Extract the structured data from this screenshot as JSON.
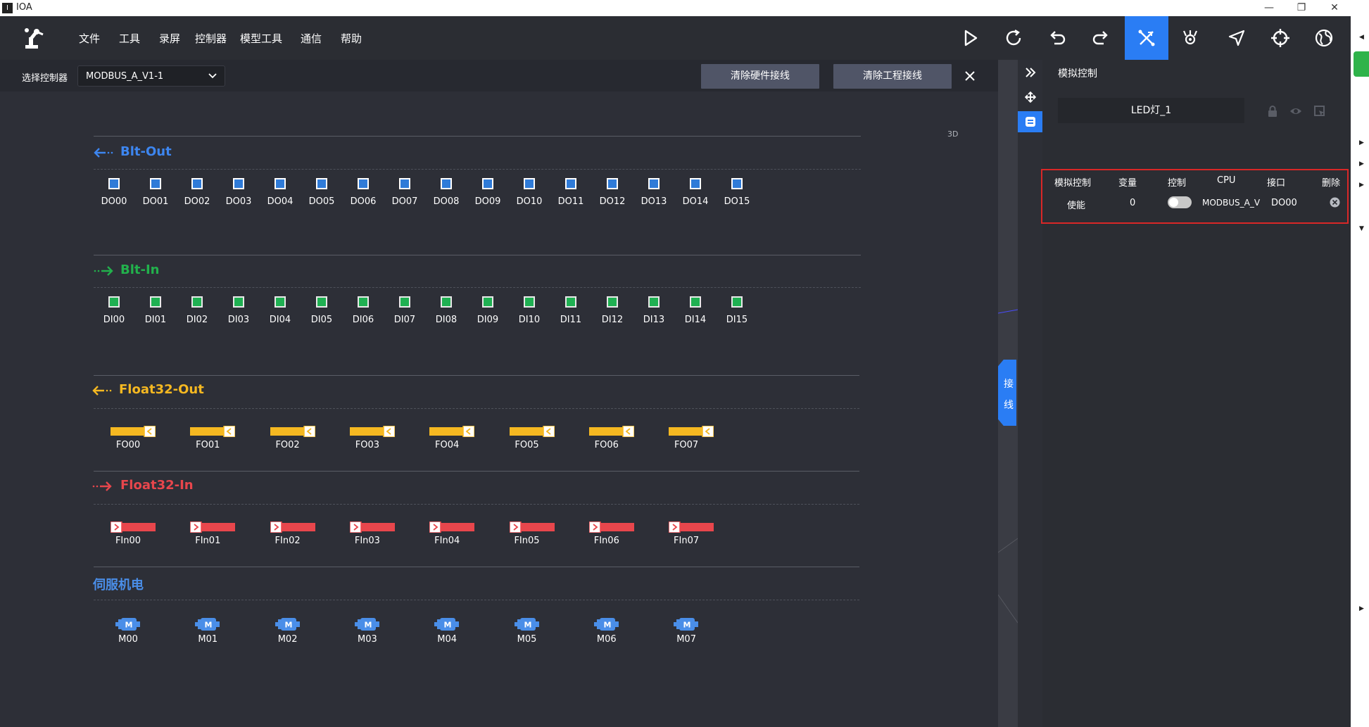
{
  "window": {
    "title": "IOA",
    "app_logo_text": "I"
  },
  "menu": [
    "文件",
    "工具",
    "录屏",
    "控制器",
    "模型工具",
    "通信",
    "帮助"
  ],
  "toolbar": {
    "icons": [
      "play-icon",
      "refresh-icon",
      "undo-icon",
      "redo-icon",
      "wiring-icon",
      "robot-hand-icon",
      "cursor-icon",
      "crosshair-icon",
      "globe-icon"
    ],
    "active": "wiring-icon"
  },
  "controller": {
    "label": "选择控制器",
    "selected": "MODBUS_A_V1-1",
    "clear_hw_label": "清除硬件接线",
    "clear_proj_label": "清除工程接线"
  },
  "canvas": {
    "label_3d": "3D",
    "wiring_tab": [
      "接",
      "线"
    ]
  },
  "sections": {
    "blt_out": {
      "title": "Blt-Out",
      "items": [
        "DO00",
        "DO01",
        "DO02",
        "DO03",
        "DO04",
        "DO05",
        "DO06",
        "DO07",
        "DO08",
        "DO09",
        "DO10",
        "DO11",
        "DO12",
        "DO13",
        "DO14",
        "DO15"
      ]
    },
    "blt_in": {
      "title": "Blt-In",
      "items": [
        "DI00",
        "DI01",
        "DI02",
        "DI03",
        "DI04",
        "DI05",
        "DI06",
        "DI07",
        "DI08",
        "DI09",
        "DI10",
        "DI11",
        "DI12",
        "DI13",
        "DI14",
        "DI15"
      ]
    },
    "float_out": {
      "title": "Float32-Out",
      "items": [
        "FO00",
        "FO01",
        "FO02",
        "FO03",
        "FO04",
        "FO05",
        "FO06",
        "FO07"
      ]
    },
    "float_in": {
      "title": "Float32-In",
      "items": [
        "FIn00",
        "FIn01",
        "FIn02",
        "FIn03",
        "FIn04",
        "FIn05",
        "FIn06",
        "FIn07"
      ]
    },
    "servo": {
      "title": "伺服机电",
      "items": [
        "M00",
        "M01",
        "M02",
        "M03",
        "M04",
        "M05",
        "M06",
        "M07"
      ]
    }
  },
  "panel": {
    "title": "模拟控制",
    "object_name": "LED灯_1",
    "table": {
      "headers": [
        "模拟控制",
        "变量",
        "控制",
        "CPU",
        "接口",
        "删除"
      ],
      "row": {
        "name": "使能",
        "value": "0",
        "toggle_on": false,
        "cpu": "MODBUS_A_V",
        "port": "DO00"
      }
    }
  },
  "colors": {
    "accent": "#2a7df4",
    "blt_out": "#3d86f0",
    "blt_in": "#22b14c",
    "float_out": "#f5b821",
    "float_in": "#e8464c",
    "servo": "#4a8ee8",
    "highlight_border": "#d92727"
  }
}
